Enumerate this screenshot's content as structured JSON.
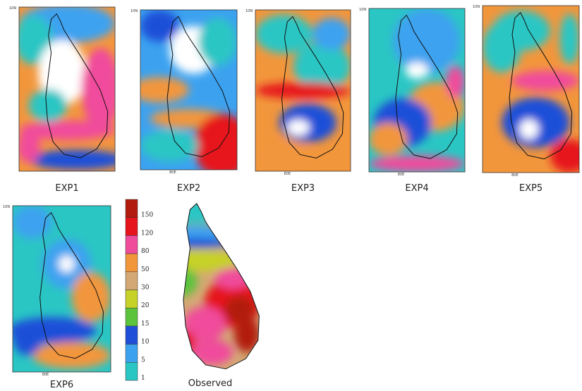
{
  "panels": [
    {
      "label": "EXP1",
      "corner_labels": [
        "10N"
      ]
    },
    {
      "label": "EXP2",
      "corner_labels": [
        "10N",
        "80E"
      ]
    },
    {
      "label": "EXP3",
      "corner_labels": [
        "10N",
        "80E"
      ]
    },
    {
      "label": "EXP4",
      "corner_labels": [
        "10N",
        "80E"
      ]
    },
    {
      "label": "EXP5",
      "corner_labels": [
        "10N",
        "80E"
      ]
    },
    {
      "label": "EXP6",
      "corner_labels": [
        "10N",
        "80E"
      ]
    }
  ],
  "observed": {
    "label": "Observed"
  },
  "colorbar": {
    "levels": [
      {
        "label": "150",
        "color": "#b21c10"
      },
      {
        "label": "120",
        "color": "#e6141c"
      },
      {
        "label": "80",
        "color": "#f04c9c"
      },
      {
        "label": "50",
        "color": "#f2963c"
      },
      {
        "label": "30",
        "color": "#d4a874"
      },
      {
        "label": "20",
        "color": "#c6d228"
      },
      {
        "label": "15",
        "color": "#5cc43c"
      },
      {
        "label": "10",
        "color": "#1f4fd8"
      },
      {
        "label": "5",
        "color": "#3ca2f0"
      },
      {
        "label": "1",
        "color": "#2ac6c4"
      }
    ]
  }
}
